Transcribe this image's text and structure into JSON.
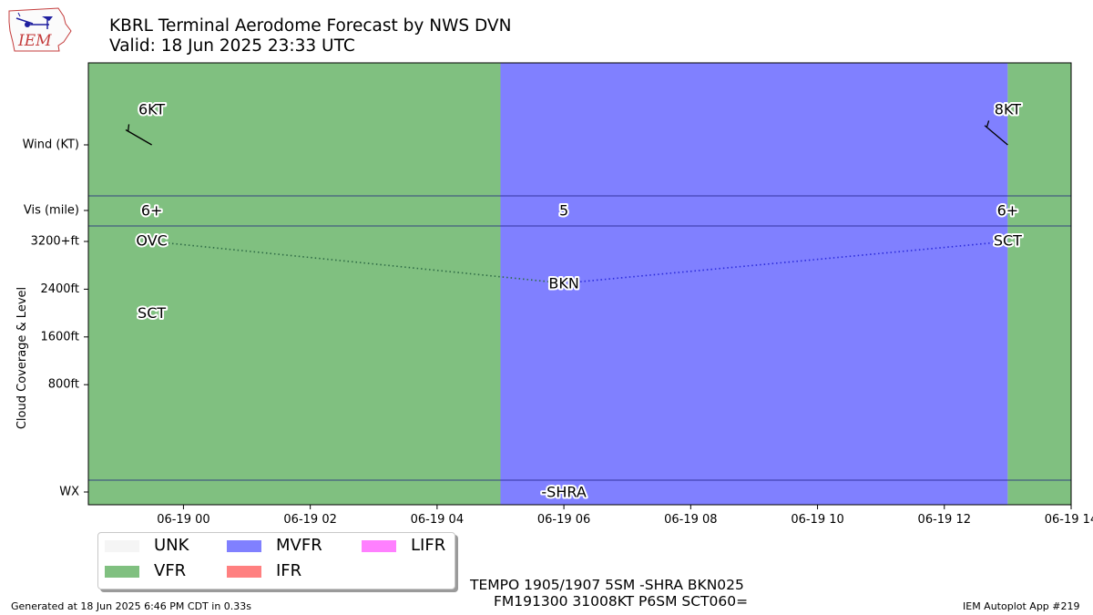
{
  "header": {
    "title": "KBRL Terminal Aerodome Forecast by NWS DVN",
    "valid": "Valid: 18 Jun 2025 23:33 UTC",
    "logo_text": "IEM"
  },
  "chart_data": {
    "type": "area",
    "x_ticks": [
      "06-19 00",
      "06-19 02",
      "06-19 04",
      "06-19 06",
      "06-19 08",
      "06-19 10",
      "06-19 12",
      "06-19 14"
    ],
    "xlim_hours": [
      -1.5,
      14.0
    ],
    "rows": [
      "Wind (KT)",
      "Vis (mile)",
      "Cloud Coverage & Level",
      "WX"
    ],
    "cloud_ticks": [
      "800ft",
      "1600ft",
      "2400ft",
      "3200+ft"
    ],
    "cloud_ylim_ft": [
      -800,
      3200
    ],
    "flight_category_periods": [
      {
        "start_hour": -1.5,
        "end_hour": 5.0,
        "category": "VFR"
      },
      {
        "start_hour": 5.0,
        "end_hour": 13.0,
        "category": "MVFR"
      },
      {
        "start_hour": 13.0,
        "end_hour": 14.0,
        "category": "VFR"
      }
    ],
    "wind": [
      {
        "hour": -0.5,
        "label": "6KT",
        "direction_deg": 300,
        "speed_kt": 6
      },
      {
        "hour": 13.0,
        "label": "8KT",
        "direction_deg": 310,
        "speed_kt": 8
      }
    ],
    "visibility": [
      {
        "hour": -0.5,
        "label": "6+"
      },
      {
        "hour": 6.0,
        "label": "5"
      },
      {
        "hour": 13.0,
        "label": "6+"
      }
    ],
    "cloud_layers": [
      {
        "hour": -0.5,
        "label": "OVC",
        "level_ft": 3200
      },
      {
        "hour": -0.5,
        "label": "SCT",
        "level_ft": 2000
      },
      {
        "hour": 6.0,
        "label": "BKN",
        "level_ft": 2500
      },
      {
        "hour": 13.0,
        "label": "SCT",
        "level_ft": 3200
      }
    ],
    "cloud_lines": [
      {
        "from_hour": -0.5,
        "from_ft": 3200,
        "to_hour": 6.0,
        "to_ft": 2500,
        "color": "#2e6b45"
      },
      {
        "from_hour": 6.0,
        "from_ft": 2500,
        "to_hour": 13.0,
        "to_ft": 3200,
        "color": "#2b2bdb"
      }
    ],
    "weather": [
      {
        "hour": 6.0,
        "label": "-SHRA"
      }
    ]
  },
  "legend": {
    "items": [
      {
        "label": "UNK",
        "color": "#f5f5f5"
      },
      {
        "label": "VFR",
        "color": "#80c080"
      },
      {
        "label": "MVFR",
        "color": "#8080ff"
      },
      {
        "label": "IFR",
        "color": "#ff8080"
      },
      {
        "label": "LIFR",
        "color": "#ff80ff"
      }
    ]
  },
  "taf_text": {
    "line1": "TEMPO 1905/1907 5SM -SHRA BKN025",
    "line2": "FM191300 31008KT P6SM SCT060="
  },
  "footer": {
    "generated": "Generated at 18 Jun 2025 6:46 PM CDT in 0.33s",
    "app": "IEM Autoplot App #219"
  }
}
